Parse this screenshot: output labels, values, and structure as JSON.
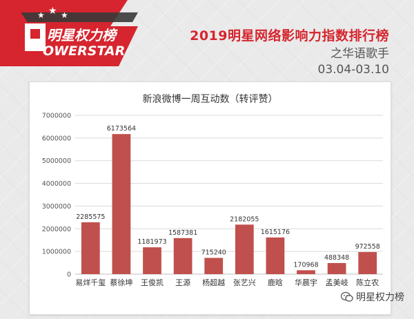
{
  "brand": {
    "logo_text_top": "明星权力榜",
    "logo_text_bottom": "OWERSTAR",
    "logo_colors": {
      "red": "#d6252e",
      "dark": "#3a3a3a",
      "white": "#ffffff"
    }
  },
  "header": {
    "title": "2019明星网络影响力指数排行榜",
    "subtitle": "之华语歌手",
    "date_range": "03.04-03.10"
  },
  "watermark": {
    "icon": "wechat-icon",
    "text": "明星权力榜"
  },
  "colors": {
    "bar": "#c0504d",
    "title_red": "#d6252e",
    "grid": "#d9d9d9"
  },
  "chart_data": {
    "type": "bar",
    "title": "新浪微博一周互动数（转评赞）",
    "categories": [
      "易烊千玺",
      "蔡徐坤",
      "王俊凯",
      "王源",
      "杨超越",
      "张艺兴",
      "鹿晗",
      "华晨宇",
      "孟美岐",
      "陈立农"
    ],
    "values": [
      2285575,
      6173564,
      1181973,
      1587381,
      715240,
      2182055,
      1615176,
      170968,
      488348,
      972558
    ],
    "data_labels": [
      "2285575",
      "6173564",
      "1181973",
      "1587381",
      "715240",
      "2182055",
      "1615176",
      "170968",
      "488348",
      "972558"
    ],
    "ylim": [
      0,
      7000000
    ],
    "yticks": [
      0,
      1000000,
      2000000,
      3000000,
      4000000,
      5000000,
      6000000,
      7000000
    ],
    "ytick_labels": [
      "0",
      "1000000",
      "2000000",
      "3000000",
      "4000000",
      "5000000",
      "6000000",
      "7000000"
    ],
    "xlabel": "",
    "ylabel": "",
    "grid": true,
    "legend": "none"
  }
}
